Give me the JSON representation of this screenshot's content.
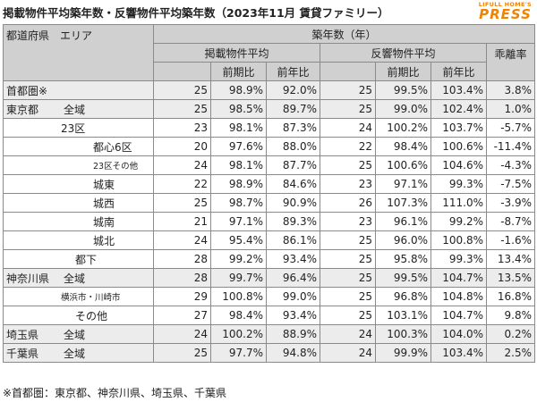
{
  "title": "掲載物件平均築年数・反響物件平均築年数（2023年11月 賃貸ファミリー）",
  "logo": {
    "top": "LIFULL HOME'S",
    "main": "PRESS"
  },
  "headers": {
    "area": "都道府県　エリア",
    "age_group": "築年数（年）",
    "listed": "掲載物件平均",
    "response": "反響物件平均",
    "divergence": "乖離率",
    "mom": "前期比",
    "yoy": "前年比"
  },
  "rows": [
    {
      "pref": "首都圏※",
      "area": "",
      "l": "25",
      "lm": "98.9%",
      "ly": "92.0%",
      "r": "25",
      "rm": "99.5%",
      "ry": "103.4%",
      "d": "3.8%"
    },
    {
      "pref": "東京都",
      "area": "全域",
      "l": "25",
      "lm": "98.5%",
      "ly": "89.7%",
      "r": "25",
      "rm": "99.0%",
      "ry": "102.4%",
      "d": "1.0%"
    },
    {
      "pref": "",
      "area": "23区",
      "l": "23",
      "lm": "98.1%",
      "ly": "87.3%",
      "r": "24",
      "rm": "100.2%",
      "ry": "103.7%",
      "d": "-5.7%"
    },
    {
      "pref": "",
      "area": "都心6区",
      "l": "20",
      "lm": "97.6%",
      "ly": "88.0%",
      "r": "22",
      "rm": "98.4%",
      "ry": "100.6%",
      "d": "-11.4%"
    },
    {
      "pref": "",
      "area": "23区その他",
      "l": "24",
      "lm": "98.1%",
      "ly": "87.7%",
      "r": "25",
      "rm": "100.6%",
      "ry": "104.6%",
      "d": "-4.3%"
    },
    {
      "pref": "",
      "area": "城東",
      "l": "22",
      "lm": "98.9%",
      "ly": "84.6%",
      "r": "23",
      "rm": "97.1%",
      "ry": "99.3%",
      "d": "-7.5%"
    },
    {
      "pref": "",
      "area": "城西",
      "l": "25",
      "lm": "98.7%",
      "ly": "90.9%",
      "r": "26",
      "rm": "107.3%",
      "ry": "111.0%",
      "d": "-3.9%"
    },
    {
      "pref": "",
      "area": "城南",
      "l": "21",
      "lm": "97.1%",
      "ly": "89.3%",
      "r": "23",
      "rm": "96.1%",
      "ry": "99.2%",
      "d": "-8.7%"
    },
    {
      "pref": "",
      "area": "城北",
      "l": "24",
      "lm": "95.4%",
      "ly": "86.1%",
      "r": "25",
      "rm": "96.0%",
      "ry": "100.8%",
      "d": "-1.6%"
    },
    {
      "pref": "",
      "area": "都下",
      "l": "28",
      "lm": "99.2%",
      "ly": "93.4%",
      "r": "25",
      "rm": "95.8%",
      "ry": "99.3%",
      "d": "13.4%"
    },
    {
      "pref": "神奈川県",
      "area": "全域",
      "l": "28",
      "lm": "99.7%",
      "ly": "96.4%",
      "r": "25",
      "rm": "99.5%",
      "ry": "104.7%",
      "d": "13.5%"
    },
    {
      "pref": "",
      "area": "横浜市・川崎市",
      "l": "29",
      "lm": "100.8%",
      "ly": "99.0%",
      "r": "25",
      "rm": "96.8%",
      "ry": "104.8%",
      "d": "16.8%"
    },
    {
      "pref": "",
      "area": "その他",
      "l": "27",
      "lm": "98.4%",
      "ly": "93.4%",
      "r": "25",
      "rm": "103.1%",
      "ry": "104.7%",
      "d": "9.8%"
    },
    {
      "pref": "埼玉県",
      "area": "全域",
      "l": "24",
      "lm": "100.2%",
      "ly": "88.9%",
      "r": "24",
      "rm": "100.3%",
      "ry": "104.0%",
      "d": "0.2%"
    },
    {
      "pref": "千葉県",
      "area": "全域",
      "l": "25",
      "lm": "97.7%",
      "ly": "94.8%",
      "r": "24",
      "rm": "99.9%",
      "ry": "103.4%",
      "d": "2.5%"
    }
  ],
  "footnote": "※首都圏：東京都、神奈川県、埼玉県、千葉県"
}
